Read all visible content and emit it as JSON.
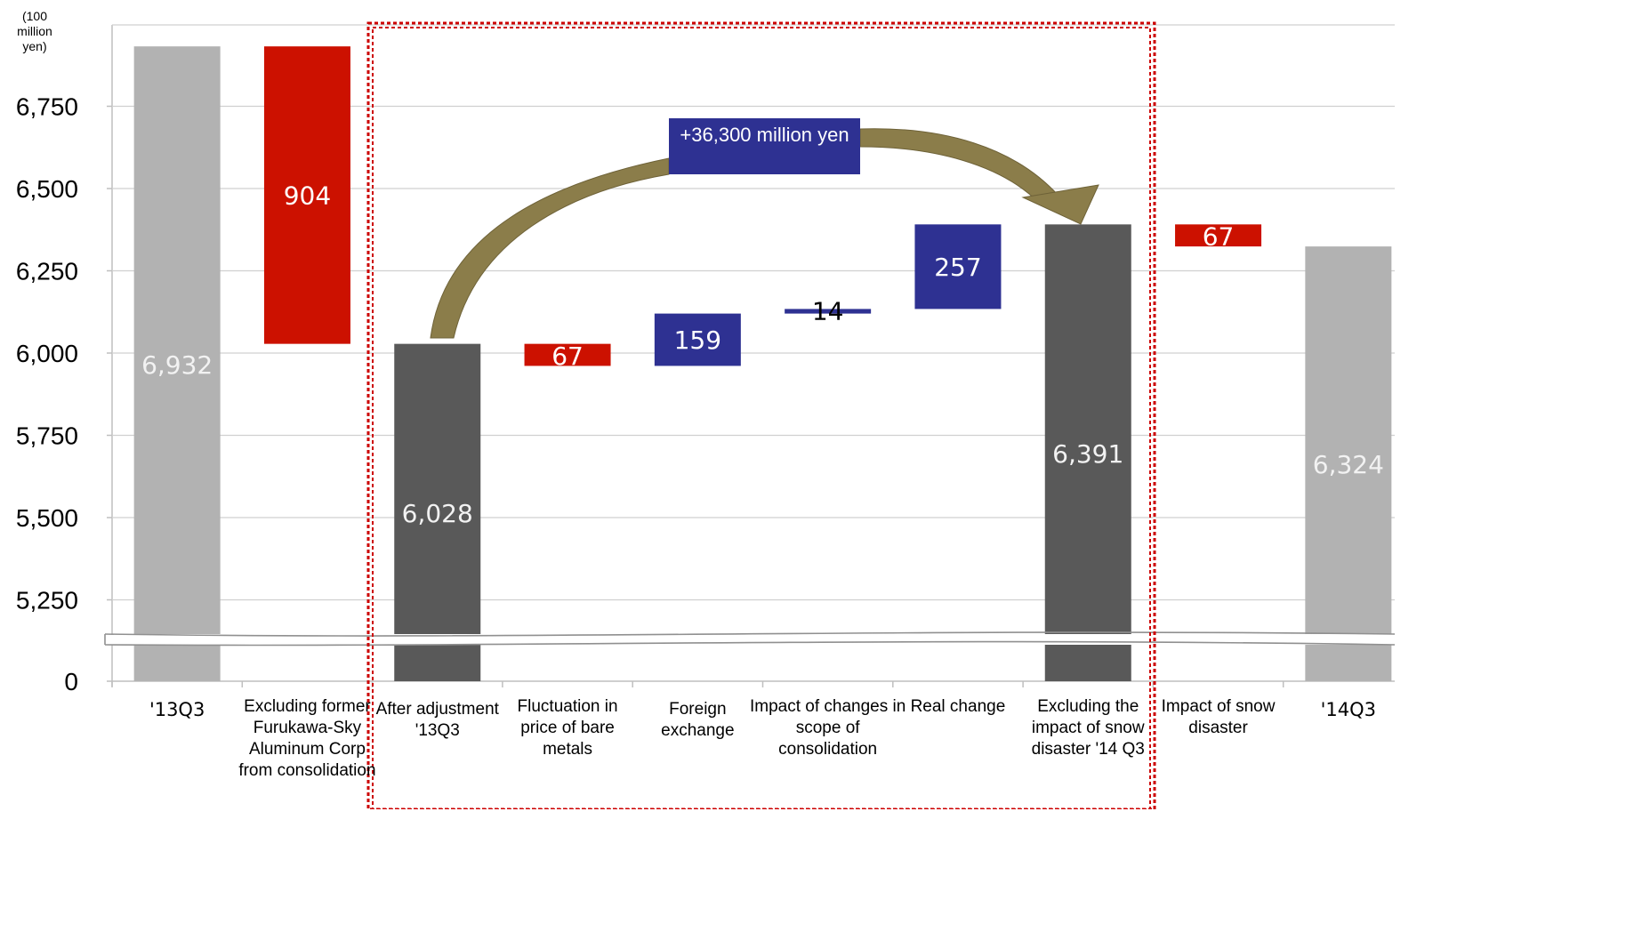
{
  "unit_label": "(100 million yen)",
  "callout": "+36,300 million yen",
  "colors": {
    "gray_light": "#b2b2b2",
    "gray_dark": "#595959",
    "red": "#cc1100",
    "blue": "#2e3192",
    "arrow": "#8b7d4a",
    "dashed_box": "#cc0000"
  },
  "chart_data": {
    "type": "bar",
    "subtype": "waterfall",
    "y_ticks": [
      "0",
      "5,250",
      "5,500",
      "5,750",
      "6,000",
      "6,250",
      "6,500",
      "6,750"
    ],
    "ylim": [
      5000,
      7050
    ],
    "axis_break": true,
    "grid": true,
    "categories": [
      "'13Q3",
      "Excluding former Furukawa-Sky Aluminum Corp from consolidation",
      "After adjustment '13Q3",
      "Fluctuation in price of bare metals",
      "Foreign exchange",
      "Impact of changes in scope of consolidation",
      "Real change",
      "Excluding the impact of snow disaster '14 Q3",
      "Impact of snow disaster",
      "'14Q3"
    ],
    "bars": [
      {
        "label": "6,932",
        "kind": "total",
        "color": "gray_light",
        "from": 0,
        "to": 6932
      },
      {
        "label": "904",
        "kind": "decrease",
        "color": "red",
        "from": 6932,
        "to": 6028
      },
      {
        "label": "6,028",
        "kind": "total",
        "color": "gray_dark",
        "from": 0,
        "to": 6028
      },
      {
        "label": "67",
        "kind": "decrease",
        "color": "red",
        "from": 6028,
        "to": 5961
      },
      {
        "label": "159",
        "kind": "increase",
        "color": "blue",
        "from": 5961,
        "to": 6120
      },
      {
        "label": "14",
        "kind": "increase",
        "color": "blue",
        "from": 6120,
        "to": 6134
      },
      {
        "label": "257",
        "kind": "increase",
        "color": "blue",
        "from": 6134,
        "to": 6391
      },
      {
        "label": "6,391",
        "kind": "total",
        "color": "gray_dark",
        "from": 0,
        "to": 6391
      },
      {
        "label": "67",
        "kind": "decrease",
        "color": "red",
        "from": 6391,
        "to": 6324
      },
      {
        "label": "6,324",
        "kind": "total",
        "color": "gray_light",
        "from": 0,
        "to": 6324
      }
    ]
  }
}
